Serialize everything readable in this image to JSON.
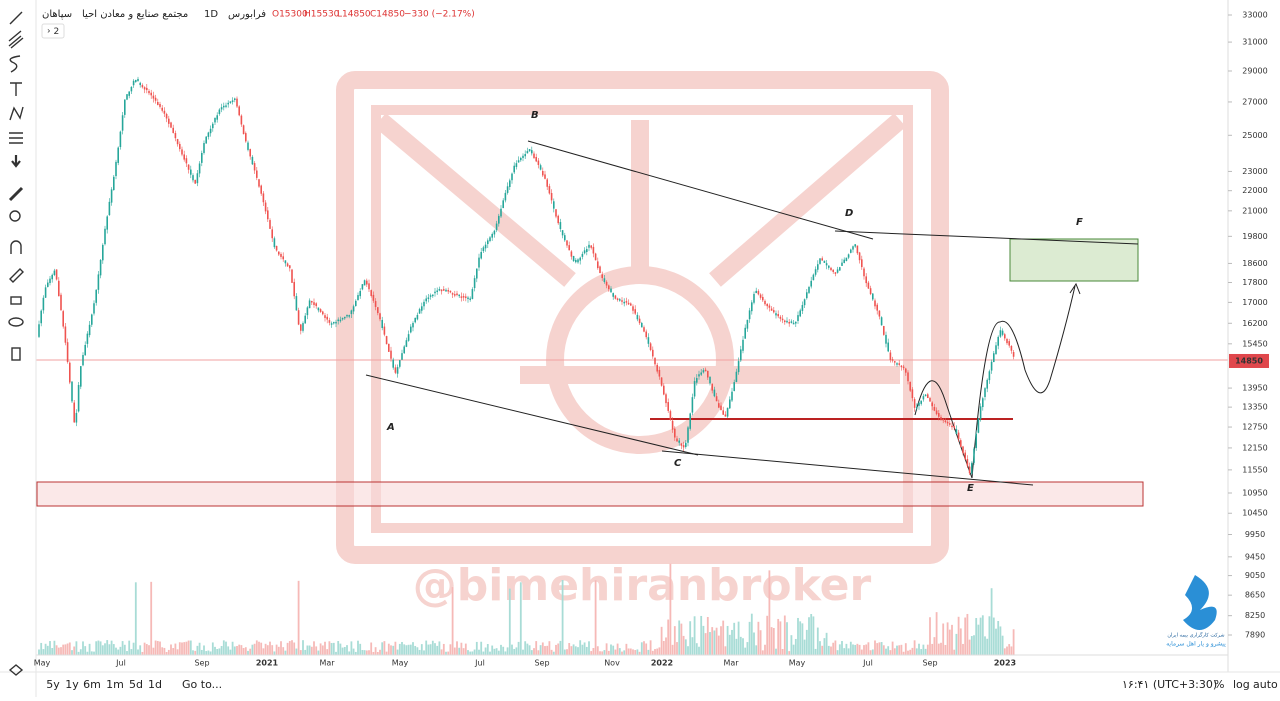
{
  "header": {
    "symbol": "سپاهان",
    "name": "مجتمع صنایع و معادن احیا",
    "interval": "1D",
    "exchange": "فرابورس",
    "open": "O15300",
    "high": "H15530",
    "low": "L14850",
    "close": "C14850",
    "change": "−330 (−2.17%)",
    "collapse": "2"
  },
  "price_axis": {
    "ticks": [
      33000,
      31000,
      29000,
      27000,
      25000,
      23000,
      22000,
      21000,
      19800,
      18600,
      17800,
      17000,
      16200,
      15450,
      13950,
      13350,
      12750,
      12150,
      11550,
      10950,
      10450,
      9950,
      9450,
      9050,
      8650,
      8250,
      7890
    ],
    "current": 14850
  },
  "time_axis": {
    "labels": [
      "May",
      "Jul",
      "Sep",
      "2021",
      "Mar",
      "May",
      "Jul",
      "Sep",
      "Nov",
      "2022",
      "Mar",
      "May",
      "Jul",
      "Sep",
      "2023"
    ]
  },
  "wave_labels": [
    "A",
    "B",
    "C",
    "D",
    "E",
    "F"
  ],
  "watermark": "@bimehiranbroker",
  "logo": {
    "line1": "شرکت کارگزاری بیمه ایران",
    "line2": "پیشرو و یار اهل سرمایه"
  },
  "toolbar": {
    "ranges": [
      "5y",
      "1y",
      "6m",
      "1m",
      "5d",
      "1d"
    ],
    "goto": "Go to...",
    "time": "۱۶:۴۱ (UTC+3:30)",
    "percent": "%",
    "log": "log",
    "auto": "auto"
  }
}
